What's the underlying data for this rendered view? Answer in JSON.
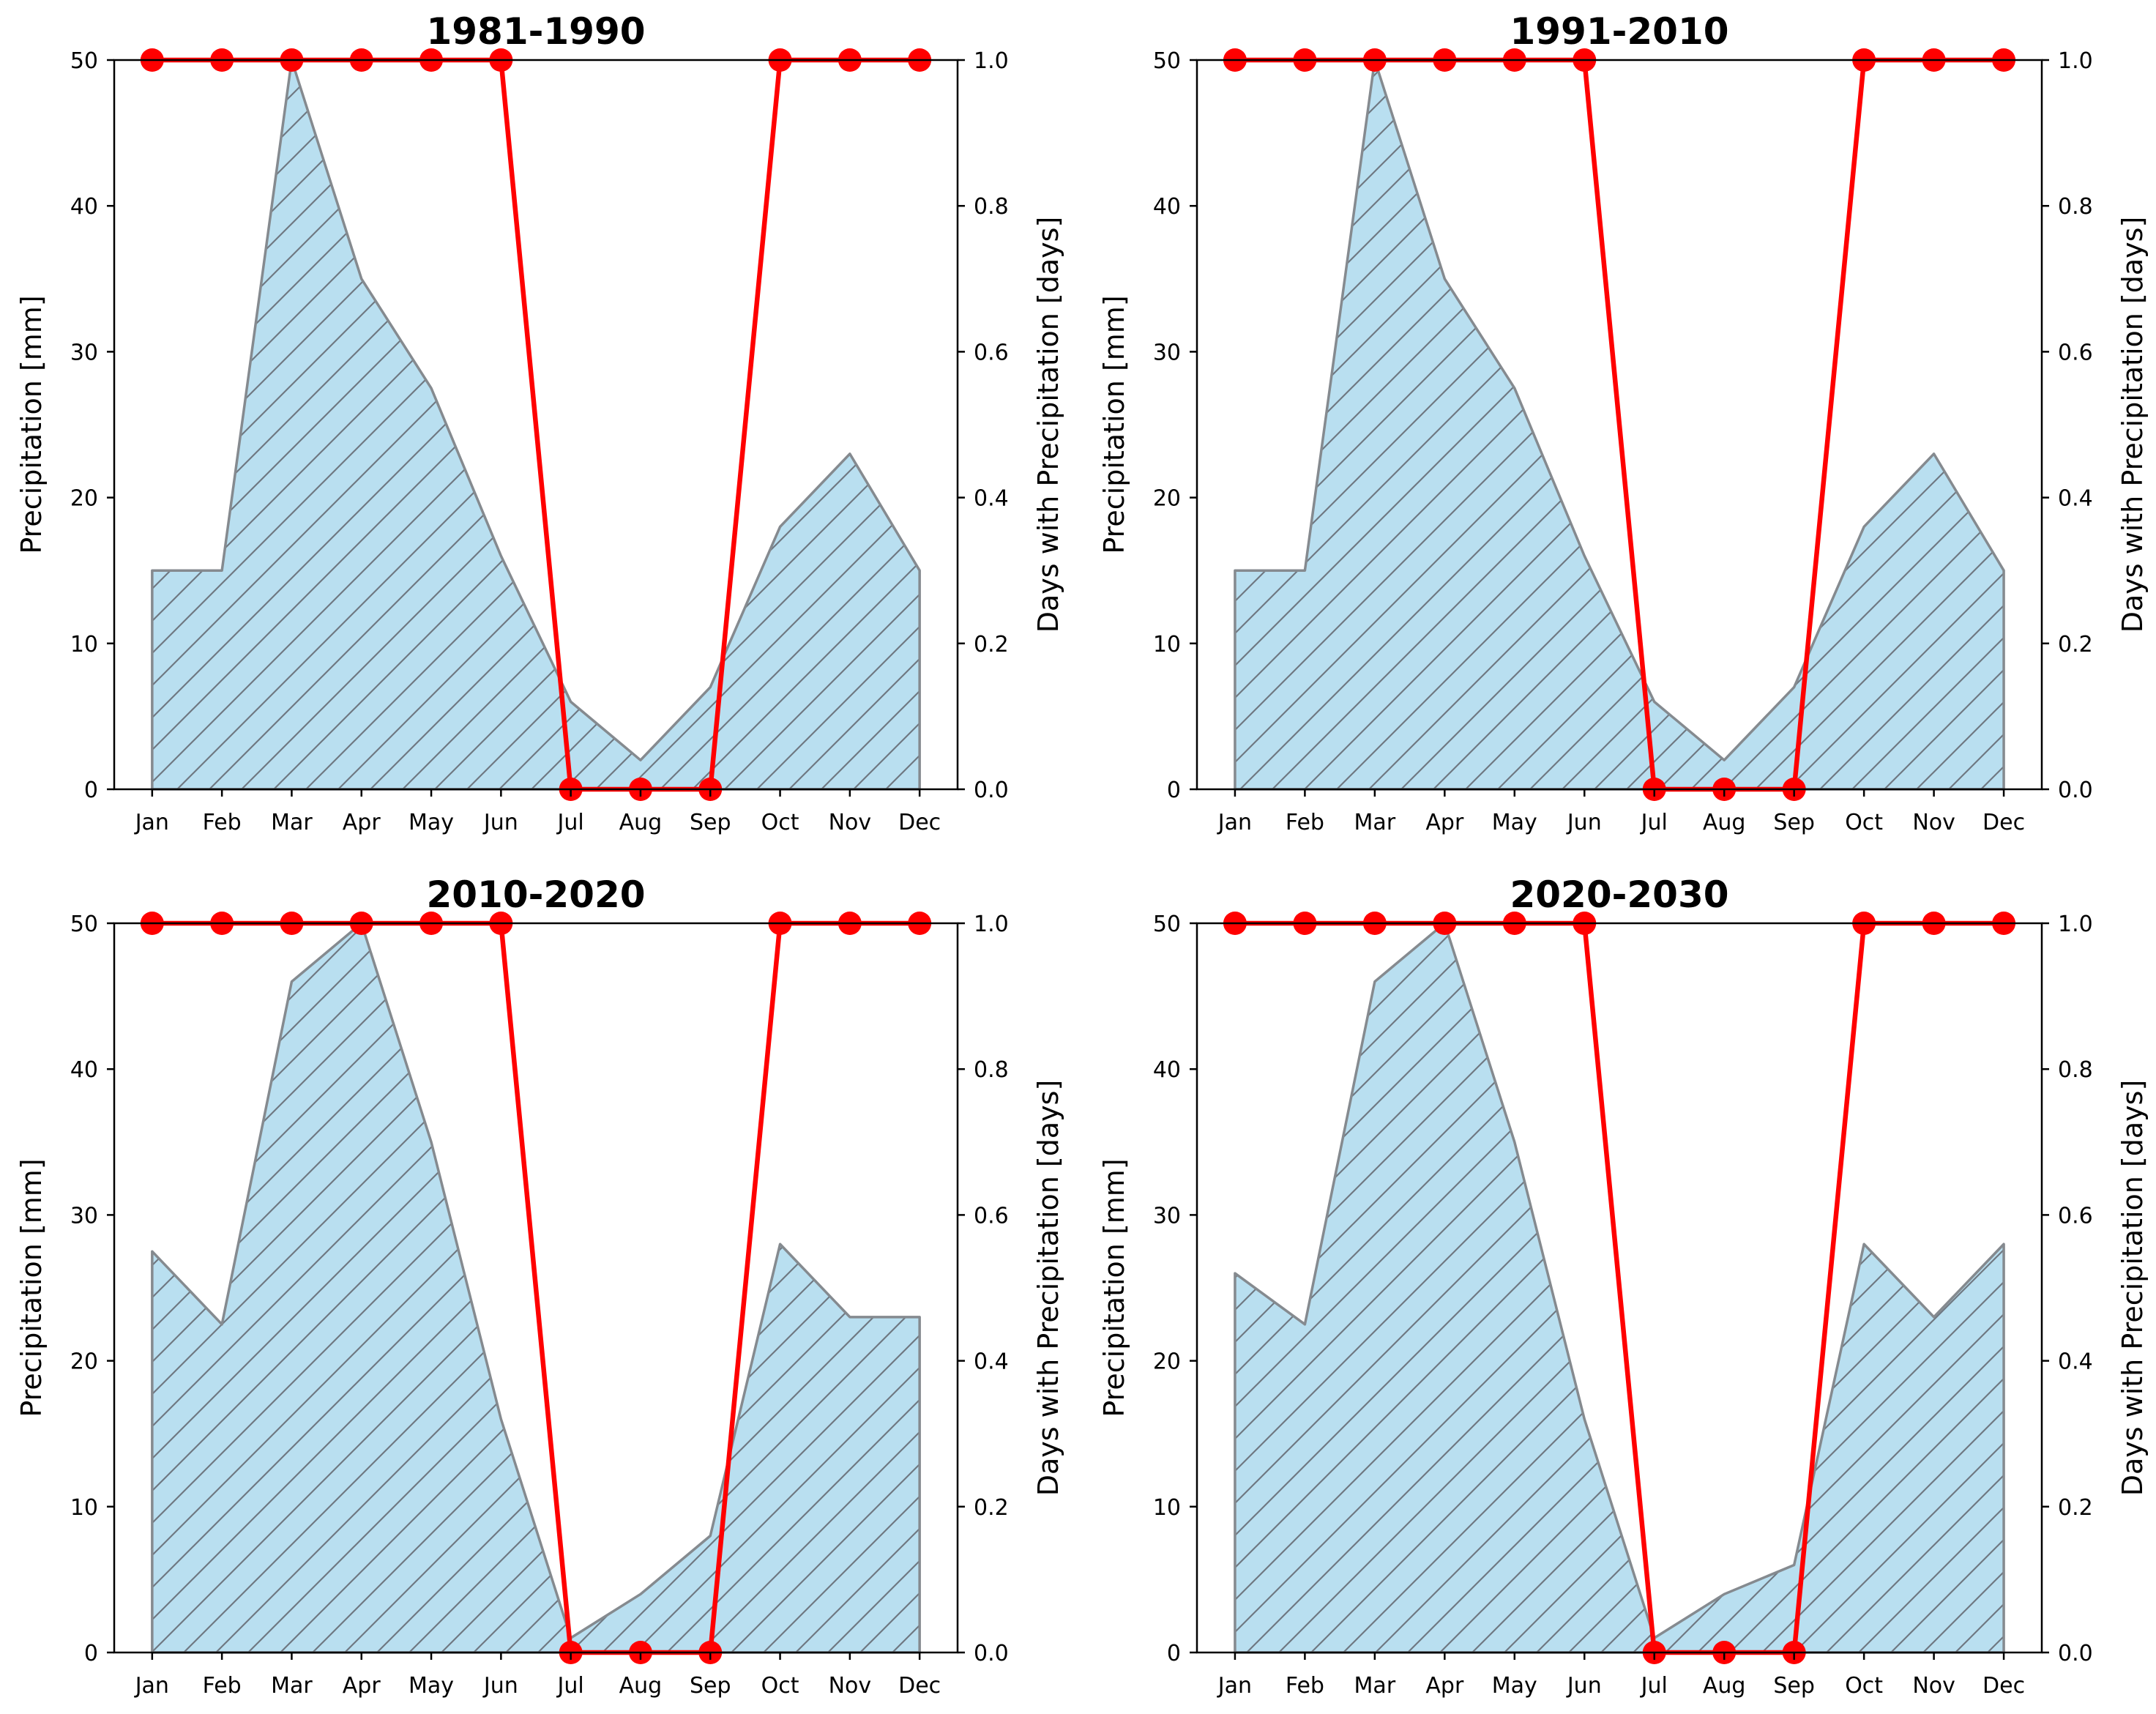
{
  "colors": {
    "area_fill": "#b9dff0",
    "area_edge": "#858a8f",
    "hatch": "#6f7882",
    "line": "#ff0000",
    "axis": "#000000"
  },
  "chart_data": [
    {
      "type": "area",
      "title": "1981-1990",
      "categories": [
        "Jan",
        "Feb",
        "Mar",
        "Apr",
        "May",
        "Jun",
        "Jul",
        "Aug",
        "Sep",
        "Oct",
        "Nov",
        "Dec"
      ],
      "ylabel": "Precipitation [mm]",
      "y2label": "Days with Precipitation [days]",
      "ylim": [
        0,
        50
      ],
      "y2lim": [
        0,
        1.0
      ],
      "yticks": [
        "0",
        "10",
        "20",
        "30",
        "40",
        "50"
      ],
      "y2ticks": [
        "0.0",
        "0.2",
        "0.4",
        "0.6",
        "0.8",
        "1.0"
      ],
      "series": [
        {
          "name": "Precipitation",
          "axis": "left",
          "kind": "area",
          "values": [
            15,
            15,
            50,
            35,
            27.5,
            16,
            6,
            2,
            7,
            18,
            23,
            15
          ]
        },
        {
          "name": "Days with Precipitation",
          "axis": "right",
          "kind": "line",
          "values": [
            1,
            1,
            1,
            1,
            1,
            1,
            0,
            0,
            0,
            1,
            1,
            1
          ]
        }
      ]
    },
    {
      "type": "area",
      "title": "1991-2010",
      "categories": [
        "Jan",
        "Feb",
        "Mar",
        "Apr",
        "May",
        "Jun",
        "Jul",
        "Aug",
        "Sep",
        "Oct",
        "Nov",
        "Dec"
      ],
      "ylabel": "Precipitation [mm]",
      "y2label": "Days with Precipitation [days]",
      "ylim": [
        0,
        50
      ],
      "y2lim": [
        0,
        1.0
      ],
      "yticks": [
        "0",
        "10",
        "20",
        "30",
        "40",
        "50"
      ],
      "y2ticks": [
        "0.0",
        "0.2",
        "0.4",
        "0.6",
        "0.8",
        "1.0"
      ],
      "series": [
        {
          "name": "Precipitation",
          "axis": "left",
          "kind": "area",
          "values": [
            15,
            15,
            50,
            35,
            27.5,
            16,
            6,
            2,
            7,
            18,
            23,
            15
          ]
        },
        {
          "name": "Days with Precipitation",
          "axis": "right",
          "kind": "line",
          "values": [
            1,
            1,
            1,
            1,
            1,
            1,
            0,
            0,
            0,
            1,
            1,
            1
          ]
        }
      ]
    },
    {
      "type": "area",
      "title": "2010-2020",
      "categories": [
        "Jan",
        "Feb",
        "Mar",
        "Apr",
        "May",
        "Jun",
        "Jul",
        "Aug",
        "Sep",
        "Oct",
        "Nov",
        "Dec"
      ],
      "ylabel": "Precipitation [mm]",
      "y2label": "Days with Precipitation [days]",
      "ylim": [
        0,
        50
      ],
      "y2lim": [
        0,
        1.0
      ],
      "yticks": [
        "0",
        "10",
        "20",
        "30",
        "40",
        "50"
      ],
      "y2ticks": [
        "0.0",
        "0.2",
        "0.4",
        "0.6",
        "0.8",
        "1.0"
      ],
      "series": [
        {
          "name": "Precipitation",
          "axis": "left",
          "kind": "area",
          "values": [
            27.5,
            22.5,
            46,
            50,
            35,
            16,
            1,
            4,
            8,
            28,
            23,
            23
          ]
        },
        {
          "name": "Days with Precipitation",
          "axis": "right",
          "kind": "line",
          "values": [
            1,
            1,
            1,
            1,
            1,
            1,
            0,
            0,
            0,
            1,
            1,
            1
          ]
        }
      ]
    },
    {
      "type": "area",
      "title": "2020-2030",
      "categories": [
        "Jan",
        "Feb",
        "Mar",
        "Apr",
        "May",
        "Jun",
        "Jul",
        "Aug",
        "Sep",
        "Oct",
        "Nov",
        "Dec"
      ],
      "ylabel": "Precipitation [mm]",
      "y2label": "Days with Precipitation [days]",
      "ylim": [
        0,
        50
      ],
      "y2lim": [
        0,
        1.0
      ],
      "yticks": [
        "0",
        "10",
        "20",
        "30",
        "40",
        "50"
      ],
      "y2ticks": [
        "0.0",
        "0.2",
        "0.4",
        "0.6",
        "0.8",
        "1.0"
      ],
      "series": [
        {
          "name": "Precipitation",
          "axis": "left",
          "kind": "area",
          "values": [
            26,
            22.5,
            46,
            50,
            35,
            16,
            1,
            4,
            6,
            28,
            23,
            28
          ]
        },
        {
          "name": "Days with Precipitation",
          "axis": "right",
          "kind": "line",
          "values": [
            1,
            1,
            1,
            1,
            1,
            1,
            0,
            0,
            0,
            1,
            1,
            1
          ]
        }
      ]
    }
  ]
}
